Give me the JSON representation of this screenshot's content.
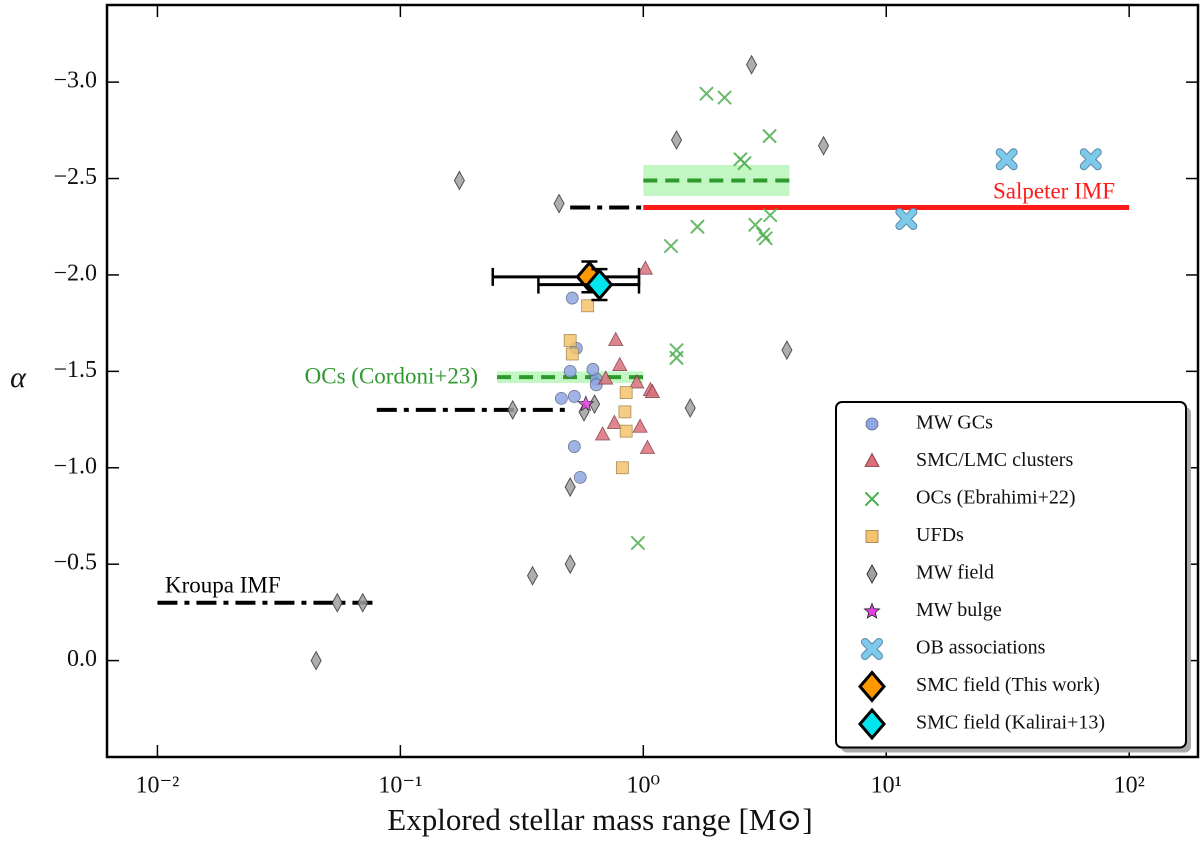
{
  "chart_data": {
    "type": "scatter",
    "xlabel": "Explored stellar mass range [M⊙]",
    "ylabel": "α",
    "xscale": "log",
    "xlim": [
      0.0062,
      192
    ],
    "ylim": [
      0.5,
      -3.4
    ],
    "xticks": [
      {
        "value": 0.01,
        "label": "10⁻²"
      },
      {
        "value": 0.1,
        "label": "10⁻¹"
      },
      {
        "value": 1,
        "label": "10⁰"
      },
      {
        "value": 10,
        "label": "10¹"
      },
      {
        "value": 100,
        "label": "10²"
      }
    ],
    "yticks": [
      {
        "value": -3.0,
        "label": "−3.0"
      },
      {
        "value": -2.5,
        "label": "−2.5"
      },
      {
        "value": -2.0,
        "label": "−2.0"
      },
      {
        "value": -1.5,
        "label": "−1.5"
      },
      {
        "value": -1.0,
        "label": "−1.0"
      },
      {
        "value": -0.5,
        "label": "−0.5"
      },
      {
        "value": 0.0,
        "label": "0.0"
      }
    ],
    "legend": "lower right",
    "reference_lines": [
      {
        "label": "Kroupa IMF",
        "color": "#000000",
        "style": "dashdot",
        "segments": [
          {
            "x": [
              0.01,
              0.08
            ],
            "y": -0.3
          },
          {
            "x": [
              0.08,
              0.5
            ],
            "y": -1.3
          },
          {
            "x": [
              0.5,
              1
            ],
            "y": -2.35
          }
        ]
      },
      {
        "label": "Salpeter IMF",
        "color": "#ff1a1a",
        "style": "solid",
        "segments": [
          {
            "x": [
              1,
              100
            ],
            "y": -2.35
          }
        ]
      },
      {
        "label": "OCs (Cordoni+23)",
        "color": "#2e9a2e",
        "style": "dashed",
        "segments": [
          {
            "x": [
              0.25,
              1
            ],
            "y": -1.47,
            "band": 0.03
          },
          {
            "x": [
              1,
              4
            ],
            "y": -2.49,
            "band": 0.08
          }
        ]
      }
    ],
    "series": [
      {
        "name": "MW GCs",
        "color": "#8fa6e3",
        "marker": "circle",
        "x": [
          0.51,
          0.53,
          0.5,
          0.46,
          0.52,
          0.52,
          0.55,
          0.64,
          0.62,
          0.64
        ],
        "values": [
          -1.88,
          -1.62,
          -1.5,
          -1.36,
          -1.37,
          -1.11,
          -0.95,
          -1.46,
          -1.51,
          -1.43
        ]
      },
      {
        "name": "SMC/LMC clusters",
        "color": "#d9707c",
        "marker": "triangle",
        "x": [
          1.02,
          0.77,
          0.8,
          0.7,
          0.94,
          1.07,
          1.09,
          0.76,
          0.68,
          0.97,
          1.04
        ],
        "values": [
          -2.03,
          -1.66,
          -1.53,
          -1.46,
          -1.44,
          -1.4,
          -1.39,
          -1.23,
          -1.17,
          -1.21,
          -1.1
        ]
      },
      {
        "name": "OCs (Ebrahimi+22)",
        "color": "#4caf50",
        "marker": "x",
        "x": [
          1.82,
          2.16,
          3.31,
          2.51,
          2.61,
          1.67,
          1.3,
          2.89,
          3.12,
          3.19,
          3.33,
          1.37,
          1.37,
          0.95
        ],
        "values": [
          -2.94,
          -2.92,
          -2.72,
          -2.6,
          -2.58,
          -2.25,
          -2.15,
          -2.26,
          -2.21,
          -2.19,
          -2.31,
          -1.61,
          -1.57,
          -0.61
        ]
      },
      {
        "name": "UFDs",
        "color": "#f5c46e",
        "marker": "square",
        "x": [
          0.59,
          0.5,
          0.51,
          0.85,
          0.84,
          0.85,
          0.82
        ],
        "values": [
          -1.84,
          -1.66,
          -1.59,
          -1.39,
          -1.29,
          -1.19,
          -1.0
        ]
      },
      {
        "name": "MW field",
        "color": "#a0a0a0",
        "marker": "diamond",
        "x": [
          2.79,
          1.37,
          5.52,
          0.175,
          0.45,
          3.9,
          1.56,
          0.29,
          0.57,
          0.63,
          0.5,
          0.35,
          0.5,
          0.055,
          0.07,
          0.045
        ],
        "values": [
          -3.09,
          -2.7,
          -2.67,
          -2.49,
          -2.37,
          -1.61,
          -1.31,
          -1.3,
          -1.29,
          -1.33,
          -0.9,
          -0.44,
          -0.5,
          -0.3,
          -0.3,
          0.0
        ]
      },
      {
        "name": "MW bulge",
        "color": "#e040e0",
        "marker": "star",
        "x": [
          0.58
        ],
        "values": [
          -1.33
        ]
      },
      {
        "name": "OB associations",
        "color": "#7ec8ea",
        "marker": "bigx",
        "x": [
          31.3,
          69.5,
          12.1
        ],
        "values": [
          -2.6,
          -2.6,
          -2.29
        ]
      },
      {
        "name": "SMC field (This work)",
        "color": "#ff9800",
        "marker": "bigdiamond",
        "x": [
          0.6
        ],
        "values": [
          -1.99
        ],
        "x_range": [
          [
            0.24,
            0.96
          ]
        ],
        "yerr": [
          0.08
        ]
      },
      {
        "name": "SMC field (Kalirai+13)",
        "color": "#00e5ee",
        "marker": "bigdiamond",
        "x": [
          0.66
        ],
        "values": [
          -1.95
        ],
        "x_range": [
          [
            0.37,
            0.96
          ]
        ],
        "yerr": [
          0.08
        ]
      }
    ]
  }
}
